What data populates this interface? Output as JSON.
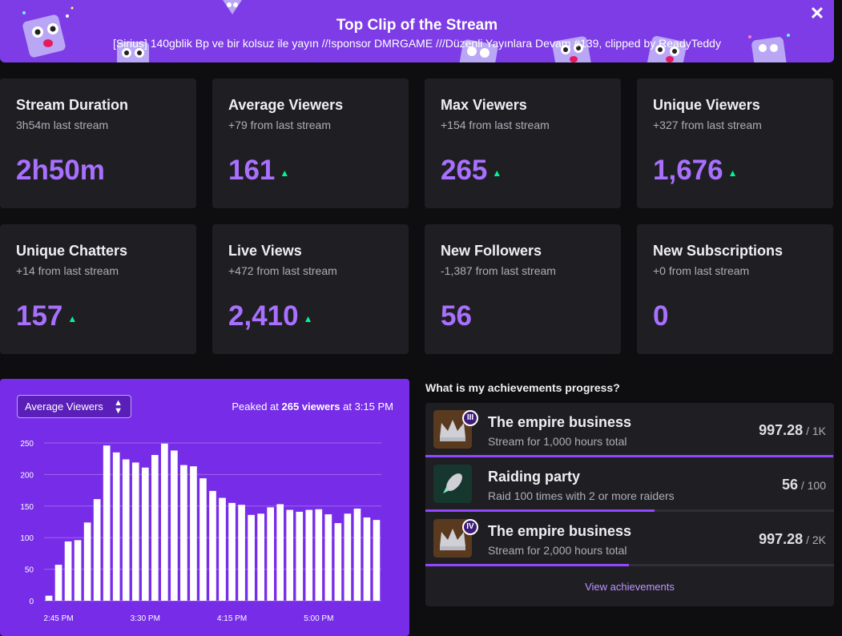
{
  "banner": {
    "title": "Top Clip of the Stream",
    "subtitle": "[Sirius] 140gblik Bp ve bir kolsuz ile yayın //!sponsor DMRGAME ///Düzenli Yayınlara Devam #139, clipped by ReadyTeddy",
    "close_label": "✕"
  },
  "stats": [
    {
      "title": "Stream Duration",
      "sub": "3h54m last stream",
      "value": "2h50m",
      "trend": ""
    },
    {
      "title": "Average Viewers",
      "sub": "+79 from last stream",
      "value": "161",
      "trend": "up"
    },
    {
      "title": "Max Viewers",
      "sub": "+154 from last stream",
      "value": "265",
      "trend": "up"
    },
    {
      "title": "Unique Viewers",
      "sub": "+327 from last stream",
      "value": "1,676",
      "trend": "up"
    },
    {
      "title": "Unique Chatters",
      "sub": "+14 from last stream",
      "value": "157",
      "trend": "up"
    },
    {
      "title": "Live Views",
      "sub": "+472 from last stream",
      "value": "2,410",
      "trend": "up"
    },
    {
      "title": "New Followers",
      "sub": "-1,387 from last stream",
      "value": "56",
      "trend": ""
    },
    {
      "title": "New Subscriptions",
      "sub": "+0 from last stream",
      "value": "0",
      "trend": ""
    }
  ],
  "chart_panel": {
    "selected_metric": "Average Viewers",
    "peak_prefix": "Peaked at ",
    "peak_value": "265 viewers",
    "peak_mid": " at ",
    "peak_time": "3:15 PM"
  },
  "chart_data": {
    "type": "bar",
    "title": "",
    "xlabel": "",
    "ylabel": "",
    "ylim": [
      0,
      250
    ],
    "yticks": [
      0,
      50,
      100,
      150,
      200,
      250
    ],
    "xtick_labels": [
      "2:45 PM",
      "3:30 PM",
      "4:15 PM",
      "5:00 PM"
    ],
    "xtick_bar_index": [
      1,
      10,
      19,
      28
    ],
    "values": [
      8,
      57,
      94,
      96,
      124,
      161,
      246,
      235,
      224,
      219,
      211,
      231,
      249,
      238,
      215,
      213,
      194,
      174,
      163,
      155,
      152,
      136,
      138,
      148,
      153,
      144,
      141,
      144,
      145,
      137,
      123,
      138,
      146,
      132,
      128
    ],
    "grid": true,
    "bar_color": "#ffffff"
  },
  "achievements": {
    "heading": "What is my achievements progress?",
    "items": [
      {
        "title": "The empire business",
        "desc": "Stream for 1,000 hours total",
        "current": "997.28",
        "target": "1K",
        "sep": " / ",
        "progress": 0.9973,
        "badge": "III",
        "icon": "crown-icon"
      },
      {
        "title": "Raiding party",
        "desc": "Raid 100 times with 2 or more raiders",
        "current": "56",
        "target": "100",
        "sep": " / ",
        "progress": 0.56,
        "badge": "",
        "icon": "rocket-icon"
      },
      {
        "title": "The empire business",
        "desc": "Stream for 2,000 hours total",
        "current": "997.28",
        "target": "2K",
        "sep": " / ",
        "progress": 0.4986,
        "badge": "IV",
        "icon": "crown-icon"
      }
    ],
    "view_link": "View achievements"
  },
  "colors": {
    "accent": "#a970ff",
    "panel": "#772ce8",
    "card": "#1f1f23",
    "trend_up": "#00f593"
  }
}
